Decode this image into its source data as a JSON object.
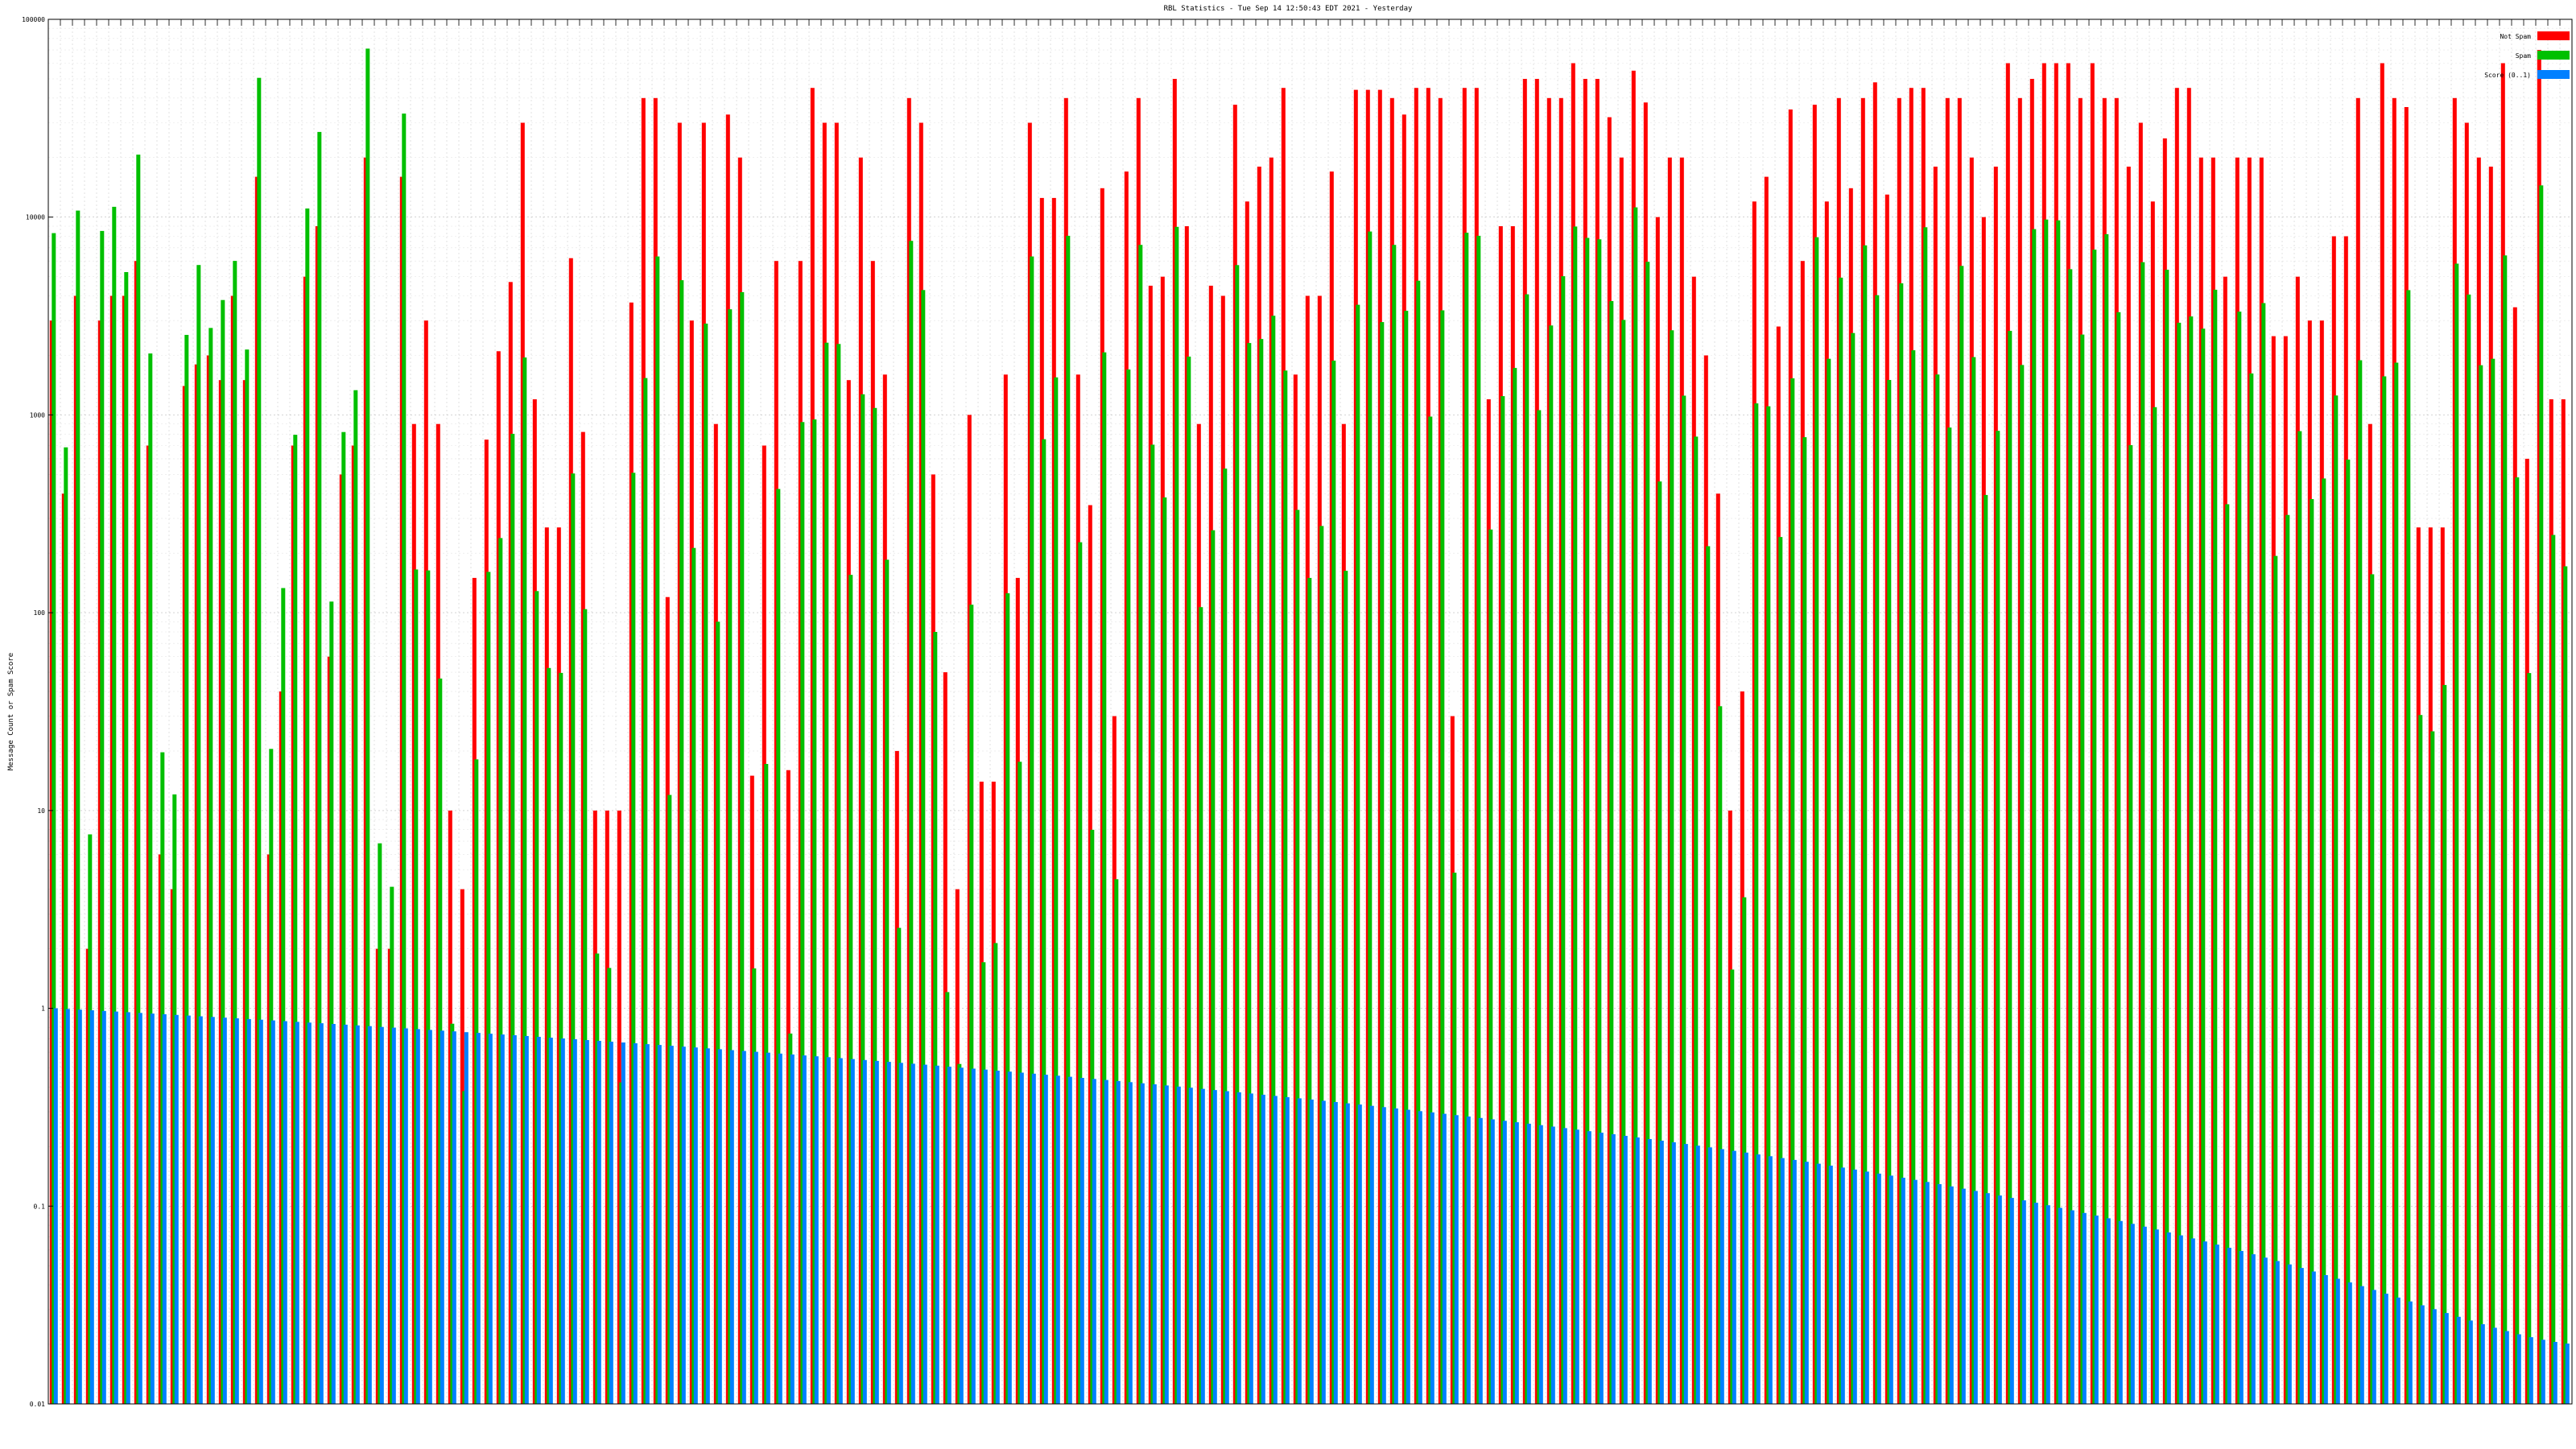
{
  "chart_data": {
    "type": "bar",
    "title": "RBL Statistics - Tue Sep 14 12:50:43 EDT 2021 - Yesterday",
    "ylabel": "Message Count or Spam Score",
    "xlabel": "",
    "yscale": "log",
    "ylim": [
      0.01,
      100000
    ],
    "yticks": [
      {
        "value": 0.01,
        "label": "0.01"
      },
      {
        "value": 0.1,
        "label": "0.1"
      },
      {
        "value": 1,
        "label": "1"
      },
      {
        "value": 10,
        "label": "10"
      },
      {
        "value": 100,
        "label": "100"
      },
      {
        "value": 1000,
        "label": "1000"
      },
      {
        "value": 10000,
        "label": "10000"
      },
      {
        "value": 100000,
        "label": "100000"
      }
    ],
    "grid": true,
    "legend_position": "top-right",
    "series": [
      {
        "name": "Not Spam",
        "color": "#ff0000"
      },
      {
        "name": "Spam",
        "color": "#00c000"
      },
      {
        "name": "Score (0..1)",
        "color": "#0080ff"
      }
    ],
    "category_labels_note": "Category labels along the x-axis are too small to be read from the screenshot.",
    "values": {
      "not_spam": [
        3000,
        400,
        4000,
        2,
        3000,
        4000,
        4000,
        6000,
        700,
        6,
        4,
        1400,
        1800,
        2000,
        1500,
        4000,
        1500,
        16000,
        6,
        40,
        700,
        5000,
        9000,
        60,
        500,
        700,
        20000,
        2,
        2,
        16000,
        900,
        3000,
        900,
        10,
        4,
        150,
        750,
        2100,
        4700,
        30000,
        1200,
        270,
        270,
        6200,
        820,
        10,
        10,
        10,
        3700,
        40000,
        40000,
        120,
        30000,
        3000,
        30000,
        900,
        33000,
        20000,
        15,
        700,
        6000,
        16,
        6000,
        45000,
        30000,
        30000,
        1500,
        20000,
        6000,
        1600,
        20,
        40000,
        30000,
        500,
        50,
        4,
        1000,
        14,
        14,
        1600,
        150,
        30000,
        12500,
        12500,
        40000,
        1600,
        350,
        14000,
        30,
        17000,
        40000,
        4500,
        5000,
        50000,
        9000,
        900,
        4500,
        4000,
        37000,
        12000,
        18000,
        20000,
        45000,
        1600,
        4000,
        4000,
        17000,
        900,
        44000,
        44000,
        44000,
        40000,
        33000,
        45000,
        45000,
        40000,
        30,
        45000,
        45000,
        1200,
        9000,
        9000,
        50000,
        50000,
        40000,
        40000,
        60000,
        50000,
        50000,
        32000,
        20000,
        55000,
        38000,
        10000,
        20000,
        20000,
        5000,
        2000,
        400,
        10,
        40,
        12000,
        16000,
        2800,
        35000,
        6000,
        37000,
        12000,
        40000,
        14000,
        40000,
        48000,
        13000,
        40000,
        45000,
        45000,
        18000,
        40000,
        40000,
        20000,
        10000,
        18000,
        60000,
        40000,
        50000,
        60000,
        60000,
        60000,
        40000,
        60000,
        40000,
        40000,
        18000,
        30000,
        12000,
        25000,
        45000,
        45000,
        20000,
        20000,
        5000,
        20000,
        20000,
        20000,
        2500,
        2500,
        5000,
        3000,
        3000,
        8000,
        8000,
        40000,
        900,
        60000,
        40000,
        36000,
        270,
        270,
        270,
        40000,
        30000,
        20000,
        18000,
        60000,
        3500,
        600,
        70000,
        1200,
        1200
      ]
    }
  }
}
